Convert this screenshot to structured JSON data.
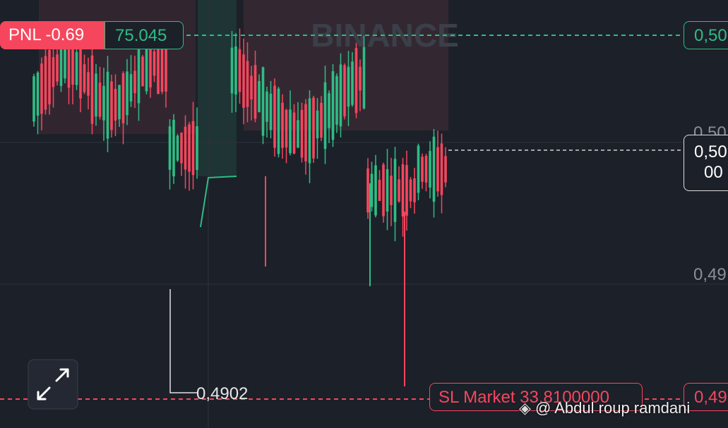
{
  "watermark": "BINANCE",
  "pnl": {
    "label": "PNL -0.69",
    "value": "75.045"
  },
  "take_profit_price": "0,50",
  "axis_labels": [
    "0,50",
    "0,49"
  ],
  "current_price": {
    "line1": "0,50",
    "line2": "00"
  },
  "low_marker": "0,4902",
  "stop_loss": {
    "label": "SL Market 33.8100000",
    "price": "0,49"
  },
  "credit": "@ Abdul roup ramdani"
}
